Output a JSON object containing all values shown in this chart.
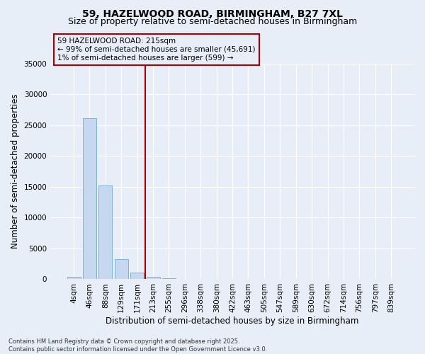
{
  "title": "59, HAZELWOOD ROAD, BIRMINGHAM, B27 7XL",
  "subtitle": "Size of property relative to semi-detached houses in Birmingham",
  "xlabel": "Distribution of semi-detached houses by size in Birmingham",
  "ylabel": "Number of semi-detached properties",
  "footer_line1": "Contains HM Land Registry data © Crown copyright and database right 2025.",
  "footer_line2": "Contains public sector information licensed under the Open Government Licence v3.0.",
  "annotation_title": "59 HAZELWOOD ROAD: 215sqm",
  "annotation_line1": "← 99% of semi-detached houses are smaller (45,691)",
  "annotation_line2": "1% of semi-detached houses are larger (599) →",
  "categories": [
    "4sqm",
    "46sqm",
    "88sqm",
    "129sqm",
    "171sqm",
    "213sqm",
    "255sqm",
    "296sqm",
    "338sqm",
    "380sqm",
    "422sqm",
    "463sqm",
    "505sqm",
    "547sqm",
    "589sqm",
    "630sqm",
    "672sqm",
    "714sqm",
    "756sqm",
    "797sqm",
    "839sqm"
  ],
  "bar_heights": [
    350,
    26100,
    15200,
    3300,
    1100,
    450,
    200,
    0,
    0,
    0,
    0,
    0,
    0,
    0,
    0,
    0,
    0,
    0,
    0,
    0,
    0
  ],
  "bar_color": "#c5d8f0",
  "bar_edge_color": "#6aaad4",
  "vline_color": "#aa0000",
  "vline_x_idx": 5,
  "ylim": [
    0,
    35000
  ],
  "yticks": [
    0,
    5000,
    10000,
    15000,
    20000,
    25000,
    30000,
    35000
  ],
  "bg_color": "#e8eef8",
  "grid_color": "#ffffff",
  "annotation_box_color": "#aa0000",
  "title_fontsize": 10,
  "subtitle_fontsize": 9,
  "axis_label_fontsize": 8.5,
  "tick_fontsize": 7.5,
  "annotation_fontsize": 7.5,
  "footer_fontsize": 6
}
